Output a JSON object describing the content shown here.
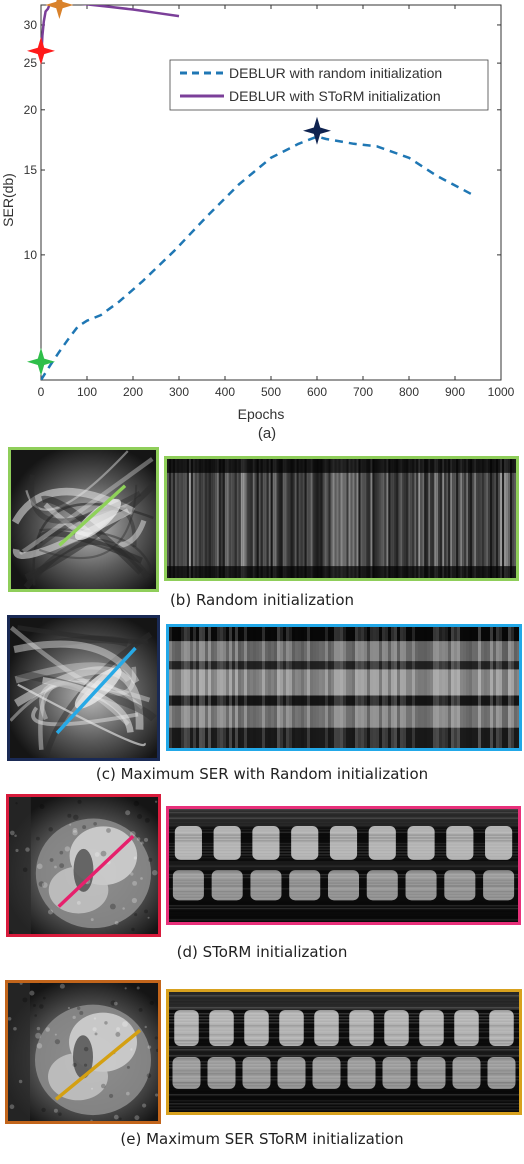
{
  "chart_data": {
    "type": "line",
    "label": "(a)",
    "xlabel": "Epochs",
    "ylabel": "SER(db)",
    "xlim": [
      0,
      1000
    ],
    "ylim": [
      5.5,
      33
    ],
    "yscale": "log",
    "xticks": [
      0,
      100,
      200,
      300,
      400,
      500,
      600,
      700,
      800,
      900,
      1000
    ],
    "yticks": [
      10,
      15,
      20,
      25,
      30
    ],
    "legend_position": "top-right",
    "series": [
      {
        "name": "DEBLUR with random initialization",
        "style": "dashed",
        "color": "#1f77b4",
        "x": [
          0,
          20,
          40,
          60,
          80,
          100,
          130,
          170,
          220,
          290,
          360,
          430,
          500,
          560,
          600,
          620,
          680,
          730,
          800,
          860,
          940
        ],
        "y": [
          5.5,
          5.9,
          6.3,
          6.7,
          7.1,
          7.3,
          7.5,
          8.0,
          8.8,
          10.2,
          12.0,
          14.0,
          15.9,
          17.0,
          17.6,
          17.4,
          17.0,
          16.8,
          15.9,
          14.6,
          13.3
        ]
      },
      {
        "name": "DEBLUR with SToRM initialization",
        "style": "solid",
        "color": "#7b3f99",
        "x": [
          0,
          3,
          6,
          10,
          15,
          20,
          30,
          50,
          100,
          150,
          200,
          250,
          300
        ],
        "y": [
          25.2,
          28.5,
          30.5,
          32.0,
          32.4,
          33.3,
          33.6,
          33.5,
          33.1,
          32.7,
          32.3,
          31.8,
          31.3
        ]
      }
    ],
    "markers": [
      {
        "x": 0,
        "y": 6.0,
        "color": "#2fbf4a"
      },
      {
        "x": 600,
        "y": 18.1,
        "color": "#0f2350"
      },
      {
        "x": 0,
        "y": 26.5,
        "color": "#ff1a1a"
      },
      {
        "x": 40,
        "y": 33.0,
        "color": "#d9822b"
      }
    ]
  },
  "panels": [
    {
      "caption": "(b) Random initialization",
      "frame_color": "#8fce5a",
      "strip_frame_color": "#8fce5a",
      "line_color": "#8fd25a",
      "kind": "random"
    },
    {
      "caption": "(c) Maximum SER with Random initialization",
      "frame_color": "#1a2a55",
      "strip_frame_color": "#22a8e8",
      "line_color": "#27a9e6",
      "kind": "maxrandom"
    },
    {
      "caption": "(d) SToRM initialization",
      "frame_color": "#d81b3c",
      "strip_frame_color": "#e8307a",
      "line_color": "#e6206c",
      "kind": "storm"
    },
    {
      "caption": "(e) Maximum SER SToRM initialization",
      "frame_color": "#c2651b",
      "strip_frame_color": "#d8a11e",
      "line_color": "#d4a012",
      "kind": "maxstorm"
    }
  ]
}
